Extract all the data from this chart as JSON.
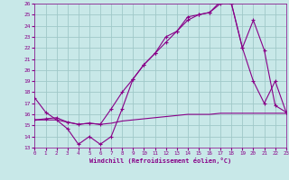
{
  "bg_color": "#c8e8e8",
  "grid_color": "#a0c8c8",
  "line_color": "#880088",
  "xlabel": "Windchill (Refroidissement éolien,°C)",
  "xlim": [
    0,
    23
  ],
  "ylim": [
    13,
    26
  ],
  "yticks": [
    13,
    14,
    15,
    16,
    17,
    18,
    19,
    20,
    21,
    22,
    23,
    24,
    25,
    26
  ],
  "xticks": [
    0,
    1,
    2,
    3,
    4,
    5,
    6,
    7,
    8,
    9,
    10,
    11,
    12,
    13,
    14,
    15,
    16,
    17,
    18,
    19,
    20,
    21,
    22,
    23
  ],
  "line1_x": [
    0,
    1,
    2,
    3,
    4,
    5,
    6,
    7,
    8,
    9,
    10,
    11,
    12,
    13,
    14,
    15,
    16,
    17,
    18,
    19,
    20,
    21,
    22,
    23
  ],
  "line1_y": [
    17.5,
    16.2,
    15.5,
    14.7,
    13.3,
    14.0,
    13.3,
    14.0,
    16.5,
    19.2,
    20.5,
    21.5,
    23.0,
    23.5,
    24.8,
    25.0,
    25.2,
    26.2,
    26.0,
    22.0,
    19.0,
    17.0,
    19.0,
    16.2
  ],
  "line2_x": [
    0,
    1,
    2,
    3,
    4,
    5,
    6,
    7,
    8,
    9,
    10,
    11,
    12,
    13,
    14,
    15,
    16,
    17,
    18,
    19,
    20,
    21,
    22,
    23
  ],
  "line2_y": [
    15.5,
    15.6,
    15.7,
    15.3,
    15.1,
    15.2,
    15.1,
    16.5,
    18.0,
    19.2,
    20.5,
    21.5,
    22.5,
    23.5,
    24.5,
    25.0,
    25.2,
    26.0,
    26.0,
    22.0,
    24.5,
    21.8,
    16.8,
    16.2
  ],
  "line3_x": [
    0,
    1,
    2,
    3,
    4,
    5,
    6,
    7,
    8,
    9,
    10,
    11,
    12,
    13,
    14,
    15,
    16,
    17,
    18,
    19,
    20,
    21,
    22,
    23
  ],
  "line3_y": [
    15.5,
    15.5,
    15.5,
    15.3,
    15.1,
    15.2,
    15.1,
    15.2,
    15.4,
    15.5,
    15.6,
    15.7,
    15.8,
    15.9,
    16.0,
    16.0,
    16.0,
    16.1,
    16.1,
    16.1,
    16.1,
    16.1,
    16.1,
    16.1
  ]
}
